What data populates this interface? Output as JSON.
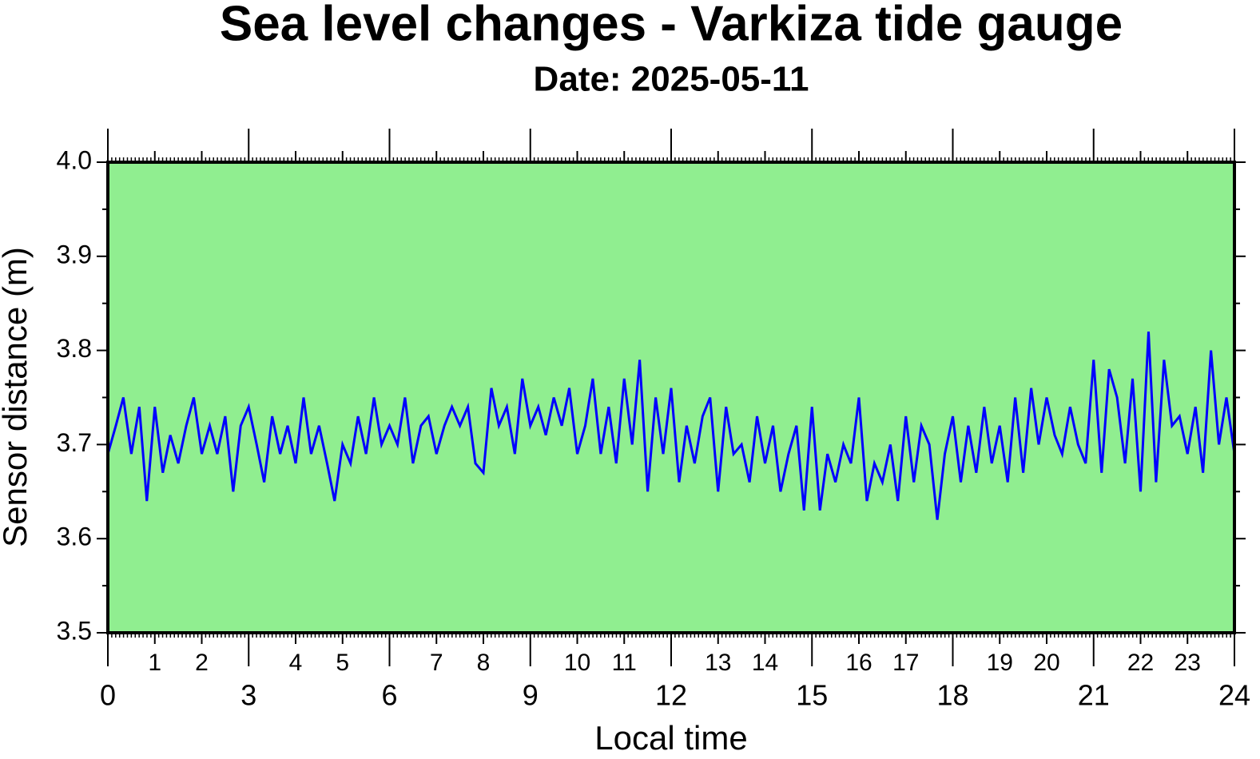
{
  "chart_data": {
    "type": "line",
    "title": "Sea level changes - Varkiza tide gauge",
    "subtitle": "Date: 2025-05-11",
    "xlabel": "Local time",
    "ylabel": "Sensor distance (m)",
    "xlim": [
      0,
      24
    ],
    "ylim": [
      3.5,
      4.0
    ],
    "xticks": [
      0,
      3,
      6,
      9,
      12,
      15,
      18,
      21,
      24
    ],
    "xticks_minor": [
      1,
      2,
      4,
      5,
      7,
      8,
      10,
      11,
      13,
      14,
      16,
      17,
      19,
      20,
      22,
      23
    ],
    "yticks": [
      3.5,
      3.6,
      3.7,
      3.8,
      3.9,
      {
        "value": 4,
        "label": "4.0"
      }
    ],
    "background": "#90ee90",
    "x": [
      0,
      0.17,
      0.33,
      0.5,
      0.67,
      0.83,
      1,
      1.17,
      1.33,
      1.5,
      1.67,
      1.83,
      2,
      2.17,
      2.33,
      2.5,
      2.67,
      2.83,
      3,
      3.17,
      3.33,
      3.5,
      3.67,
      3.83,
      4,
      4.17,
      4.33,
      4.5,
      4.67,
      4.83,
      5,
      5.17,
      5.33,
      5.5,
      5.67,
      5.83,
      6,
      6.17,
      6.33,
      6.5,
      6.67,
      6.83,
      7,
      7.17,
      7.33,
      7.5,
      7.67,
      7.83,
      8,
      8.17,
      8.33,
      8.5,
      8.67,
      8.83,
      9,
      9.17,
      9.33,
      9.5,
      9.67,
      9.83,
      10,
      10.17,
      10.33,
      10.5,
      10.67,
      10.83,
      11,
      11.17,
      11.33,
      11.5,
      11.67,
      11.83,
      12,
      12.17,
      12.33,
      12.5,
      12.67,
      12.83,
      13,
      13.17,
      13.33,
      13.5,
      13.67,
      13.83,
      14,
      14.17,
      14.33,
      14.5,
      14.67,
      14.83,
      15,
      15.17,
      15.33,
      15.5,
      15.67,
      15.83,
      16,
      16.17,
      16.33,
      16.5,
      16.67,
      16.83,
      17,
      17.17,
      17.33,
      17.5,
      17.67,
      17.83,
      18,
      18.17,
      18.33,
      18.5,
      18.67,
      18.83,
      19,
      19.17,
      19.33,
      19.5,
      19.67,
      19.83,
      20,
      20.17,
      20.33,
      20.5,
      20.67,
      20.83,
      21,
      21.17,
      21.33,
      21.5,
      21.67,
      21.83,
      22,
      22.17,
      22.33,
      22.5,
      22.67,
      22.83,
      23,
      23.17,
      23.33,
      23.5,
      23.67,
      23.83,
      24
    ],
    "series": [
      {
        "color": "#0000ff",
        "values": [
          3.69,
          3.72,
          3.75,
          3.69,
          3.74,
          3.64,
          3.74,
          3.67,
          3.71,
          3.68,
          3.72,
          3.75,
          3.69,
          3.72,
          3.69,
          3.73,
          3.65,
          3.72,
          3.74,
          3.7,
          3.66,
          3.73,
          3.69,
          3.72,
          3.68,
          3.75,
          3.69,
          3.72,
          3.68,
          3.64,
          3.7,
          3.68,
          3.73,
          3.69,
          3.75,
          3.7,
          3.72,
          3.7,
          3.75,
          3.68,
          3.72,
          3.73,
          3.69,
          3.72,
          3.74,
          3.72,
          3.74,
          3.68,
          3.67,
          3.76,
          3.72,
          3.74,
          3.69,
          3.77,
          3.72,
          3.74,
          3.71,
          3.75,
          3.72,
          3.76,
          3.69,
          3.72,
          3.77,
          3.69,
          3.74,
          3.68,
          3.77,
          3.7,
          3.79,
          3.65,
          3.75,
          3.69,
          3.76,
          3.66,
          3.72,
          3.68,
          3.73,
          3.75,
          3.65,
          3.74,
          3.69,
          3.7,
          3.66,
          3.73,
          3.68,
          3.72,
          3.65,
          3.69,
          3.72,
          3.63,
          3.74,
          3.63,
          3.69,
          3.66,
          3.7,
          3.68,
          3.75,
          3.64,
          3.68,
          3.66,
          3.7,
          3.64,
          3.73,
          3.66,
          3.72,
          3.7,
          3.62,
          3.69,
          3.73,
          3.66,
          3.72,
          3.67,
          3.74,
          3.68,
          3.72,
          3.66,
          3.75,
          3.67,
          3.76,
          3.7,
          3.75,
          3.71,
          3.69,
          3.74,
          3.7,
          3.68,
          3.79,
          3.67,
          3.78,
          3.75,
          3.68,
          3.77,
          3.65,
          3.82,
          3.66,
          3.79,
          3.72,
          3.73,
          3.69,
          3.74,
          3.67,
          3.8,
          3.7,
          3.75,
          3.69
        ]
      }
    ]
  }
}
